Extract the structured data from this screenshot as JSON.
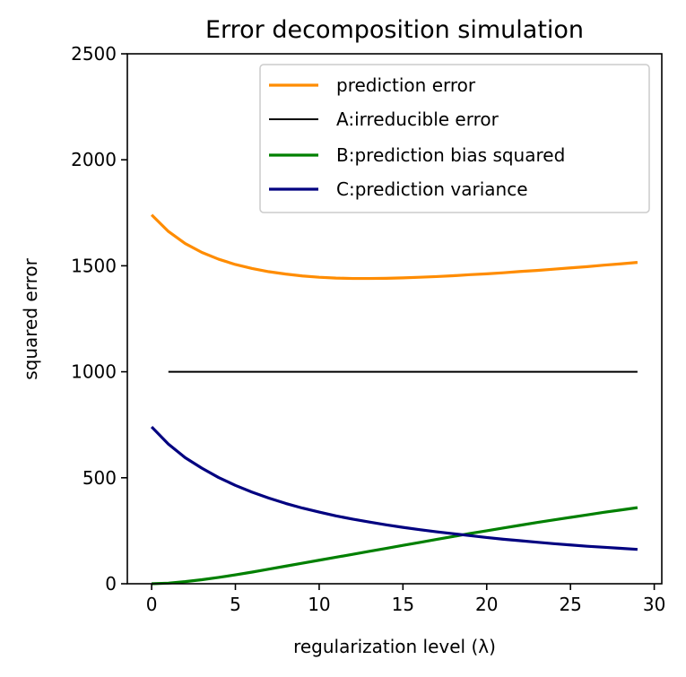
{
  "chart_data": {
    "type": "line",
    "title": "Error decomposition simulation",
    "xlabel": "regularization level (λ)",
    "ylabel": "squared error",
    "xlim": [
      -1.45,
      30.45
    ],
    "ylim": [
      0,
      2500
    ],
    "xticks": [
      0,
      5,
      10,
      15,
      20,
      25,
      30
    ],
    "yticks": [
      0,
      500,
      1000,
      1500,
      2000,
      2500
    ],
    "grid": false,
    "legend_position": "upper-right",
    "series": [
      {
        "name": "prediction error",
        "color": "#ff8c00",
        "width": 3.2,
        "x": [
          0,
          1,
          2,
          3,
          4,
          5,
          6,
          7,
          8,
          9,
          10,
          11,
          12,
          13,
          14,
          15,
          16,
          17,
          18,
          19,
          20,
          21,
          22,
          23,
          24,
          25,
          26,
          27,
          28,
          29
        ],
        "y": [
          1740,
          1662,
          1605,
          1563,
          1531,
          1506,
          1487,
          1472,
          1461,
          1452,
          1446,
          1442,
          1440,
          1440,
          1441,
          1443,
          1446,
          1449,
          1453,
          1458,
          1462,
          1467,
          1473,
          1478,
          1484,
          1490,
          1496,
          1503,
          1509,
          1516
        ]
      },
      {
        "name": "A:irreducible error",
        "color": "#000000",
        "width": 2,
        "x": [
          1,
          29
        ],
        "y": [
          1000,
          1000
        ]
      },
      {
        "name": "B:prediction bias squared",
        "color": "#008000",
        "width": 3.2,
        "x": [
          0,
          1,
          2,
          3,
          4,
          5,
          6,
          7,
          8,
          9,
          10,
          11,
          12,
          13,
          14,
          15,
          16,
          17,
          18,
          19,
          20,
          21,
          22,
          23,
          24,
          25,
          26,
          27,
          28,
          29
        ],
        "y": [
          0,
          3,
          10,
          19,
          30,
          42,
          55,
          69,
          83,
          97,
          111,
          125,
          139,
          153,
          167,
          181,
          195,
          209,
          223,
          237,
          250,
          263,
          276,
          289,
          301,
          313,
          325,
          337,
          348,
          359
        ]
      },
      {
        "name": "C:prediction variance",
        "color": "#000080",
        "width": 3.2,
        "x": [
          0,
          1,
          2,
          3,
          4,
          5,
          6,
          7,
          8,
          9,
          10,
          11,
          12,
          13,
          14,
          15,
          16,
          17,
          18,
          19,
          20,
          21,
          22,
          23,
          24,
          25,
          26,
          27,
          28,
          29
        ],
        "y": [
          740,
          659,
          595,
          545,
          501,
          464,
          432,
          404,
          379,
          357,
          338,
          320,
          305,
          291,
          278,
          266,
          255,
          245,
          236,
          227,
          218,
          210,
          203,
          196,
          189,
          183,
          177,
          172,
          167,
          162
        ]
      }
    ]
  }
}
